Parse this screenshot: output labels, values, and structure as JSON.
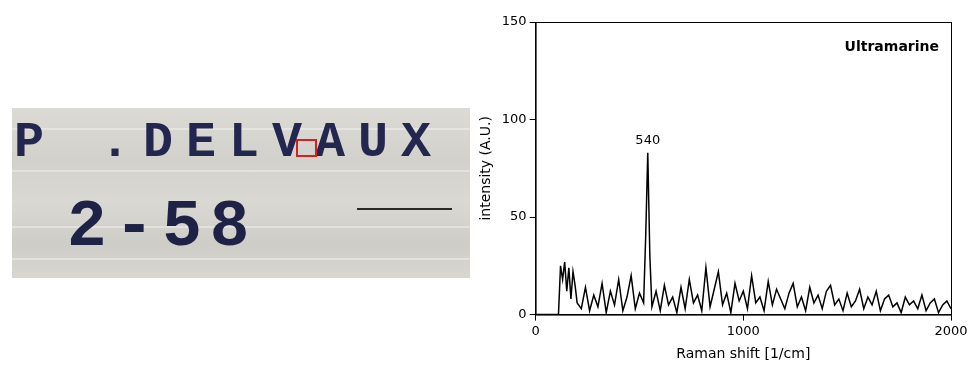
{
  "chart_data": {
    "type": "line",
    "title": "Ultramarine",
    "x_label": "Raman shift [1/cm]",
    "y_label": "intensity (A.U.)",
    "x": [
      0,
      110,
      120,
      130,
      140,
      150,
      160,
      170,
      180,
      190,
      200,
      220,
      240,
      260,
      280,
      300,
      320,
      340,
      360,
      380,
      400,
      420,
      440,
      460,
      480,
      500,
      520,
      530,
      540,
      550,
      560,
      580,
      600,
      620,
      640,
      660,
      680,
      700,
      720,
      740,
      760,
      780,
      800,
      820,
      840,
      860,
      880,
      900,
      920,
      940,
      960,
      980,
      1000,
      1020,
      1040,
      1060,
      1080,
      1100,
      1120,
      1140,
      1160,
      1180,
      1200,
      1220,
      1240,
      1260,
      1280,
      1300,
      1320,
      1340,
      1360,
      1380,
      1400,
      1420,
      1440,
      1460,
      1480,
      1500,
      1520,
      1540,
      1560,
      1580,
      1600,
      1620,
      1640,
      1660,
      1680,
      1700,
      1720,
      1740,
      1760,
      1780,
      1800,
      1820,
      1840,
      1860,
      1880,
      1900,
      1920,
      1940,
      1960,
      1980,
      2000
    ],
    "values": [
      0,
      0,
      25,
      18,
      27,
      12,
      24,
      8,
      22,
      15,
      6,
      3,
      14,
      2,
      10,
      4,
      16,
      1,
      12,
      5,
      18,
      2,
      9,
      20,
      3,
      11,
      6,
      40,
      83,
      30,
      4,
      12,
      2,
      15,
      5,
      9,
      1,
      14,
      3,
      18,
      6,
      10,
      2,
      24,
      4,
      13,
      22,
      5,
      11,
      1,
      16,
      7,
      12,
      3,
      20,
      6,
      9,
      2,
      17,
      5,
      13,
      8,
      3,
      11,
      16,
      4,
      9,
      2,
      14,
      6,
      10,
      3,
      12,
      15,
      5,
      8,
      2,
      11,
      4,
      7,
      13,
      3,
      9,
      5,
      12,
      2,
      8,
      10,
      4,
      6,
      1,
      9,
      5,
      7,
      3,
      10,
      2,
      6,
      8,
      1,
      5,
      7,
      3
    ],
    "color": "#000000",
    "xlim": [
      0,
      2000
    ],
    "xticks": [
      0,
      1000,
      2000
    ],
    "ylim": [
      0,
      150
    ],
    "yticks": [
      0,
      50,
      100,
      150
    ],
    "grid": false,
    "annotations": [
      {
        "text": "540",
        "x": 540,
        "y": 83
      }
    ]
  },
  "photo": {
    "lines": [
      "P .DELVAUX",
      "2-58"
    ]
  }
}
